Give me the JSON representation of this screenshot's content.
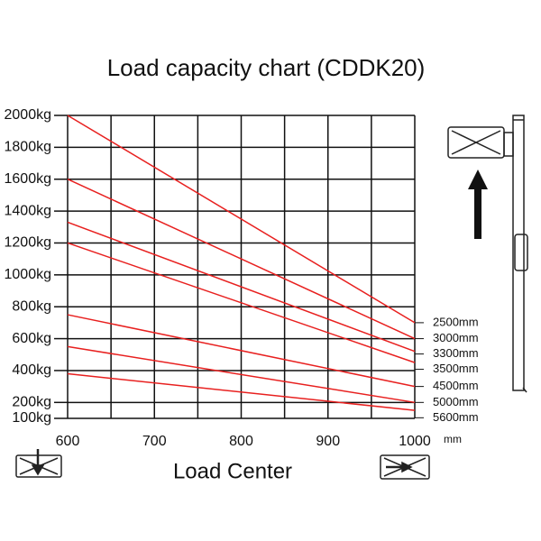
{
  "chart_data": {
    "type": "line",
    "title": "Load capacity chart (CDDK20)",
    "x_label": "Load Center",
    "x_unit": "mm",
    "x": [
      600,
      1000
    ],
    "xlim": [
      600,
      1000
    ],
    "xticks": [
      600,
      700,
      800,
      900,
      1000
    ],
    "xminor": [
      650,
      750,
      850,
      950
    ],
    "ylim": [
      100,
      2000
    ],
    "yticks": [
      {
        "value": 100,
        "label": "100kg"
      },
      {
        "value": 200,
        "label": "200kg"
      },
      {
        "value": 400,
        "label": "400kg"
      },
      {
        "value": 600,
        "label": "600kg"
      },
      {
        "value": 800,
        "label": "800kg"
      },
      {
        "value": 1000,
        "label": "1000kg"
      },
      {
        "value": 1200,
        "label": "1200kg"
      },
      {
        "value": 1400,
        "label": "1400kg"
      },
      {
        "value": 1600,
        "label": "1600kg"
      },
      {
        "value": 1800,
        "label": "1800kg"
      },
      {
        "value": 2000,
        "label": "2000kg"
      }
    ],
    "grid": true,
    "series": [
      {
        "name": "2500mm",
        "color": "#e8201f",
        "values": [
          2000,
          700
        ]
      },
      {
        "name": "3000mm",
        "color": "#e8201f",
        "values": [
          1600,
          600
        ]
      },
      {
        "name": "3300mm",
        "color": "#e8201f",
        "values": [
          1330,
          520
        ]
      },
      {
        "name": "3500mm",
        "color": "#e8201f",
        "values": [
          1200,
          450
        ]
      },
      {
        "name": "4500mm",
        "color": "#e8201f",
        "values": [
          750,
          300
        ]
      },
      {
        "name": "5000mm",
        "color": "#e8201f",
        "values": [
          550,
          200
        ]
      },
      {
        "name": "5600mm",
        "color": "#e8201f",
        "values": [
          380,
          150
        ]
      }
    ]
  }
}
